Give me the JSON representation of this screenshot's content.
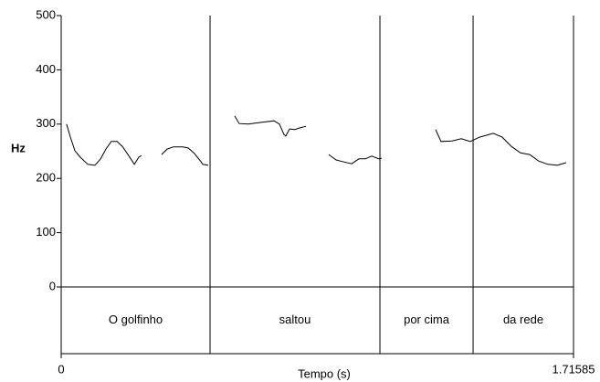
{
  "chart_data": {
    "type": "line",
    "y_label": "Hz",
    "x_label": "Tempo (s)",
    "xlim": [
      0,
      1.71585
    ],
    "xticks": [
      0,
      1.71585
    ],
    "ylim": [
      0,
      500
    ],
    "yticks": [
      0,
      100,
      200,
      300,
      400,
      500
    ],
    "series": [
      {
        "color": "#000000",
        "x": [
          0.018,
          0.031,
          0.046,
          0.064,
          0.089,
          0.113,
          0.132,
          0.15,
          0.168,
          0.187,
          0.205,
          0.226,
          0.245,
          0.26,
          0.269,
          0.28,
          0.336,
          0.355,
          0.376,
          0.407,
          0.425,
          0.446,
          0.468,
          0.474,
          0.492,
          0.54,
          0.581,
          0.596,
          0.627,
          0.667,
          0.713,
          0.731,
          0.746,
          0.752,
          0.765,
          0.783,
          0.798,
          0.82,
          0.85,
          0.896,
          0.921,
          0.942,
          0.973,
          0.997,
          1.019,
          1.04,
          1.064,
          1.073,
          1.2,
          1.254,
          1.272,
          1.309,
          1.34,
          1.37,
          1.401,
          1.447,
          1.477,
          1.508,
          1.538,
          1.569,
          1.599,
          1.63,
          1.661,
          1.691
        ],
        "values": [
          300,
          276,
          251,
          239,
          226,
          224,
          236,
          254,
          268,
          268,
          259,
          242,
          226,
          239,
          242,
          null,
          244,
          254,
          258,
          258,
          256,
          246,
          231,
          226,
          224,
          null,
          315,
          301,
          300,
          303,
          306,
          300,
          281,
          278,
          291,
          290,
          293,
          296,
          null,
          244,
          234,
          231,
          227,
          236,
          236,
          241,
          236,
          237,
          null,
          290,
          268,
          269,
          273,
          268,
          276,
          283,
          276,
          259,
          247,
          244,
          232,
          226,
          224,
          229
        ]
      }
    ],
    "boundaries": [
      0.4986,
      1.0675,
      1.3795
    ],
    "words": [
      "O golfinho",
      "saltou",
      "por cima",
      "da rede"
    ]
  }
}
